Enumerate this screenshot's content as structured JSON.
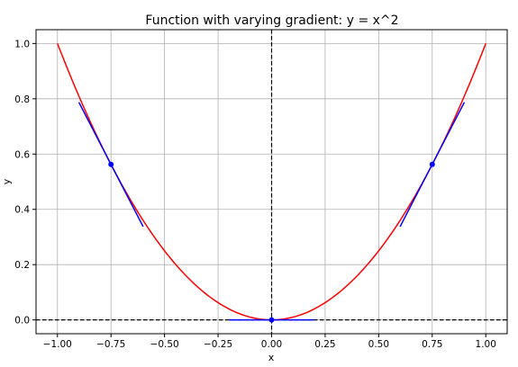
{
  "chart_data": {
    "type": "line",
    "title": "Function with varying gradient: y = x^2",
    "xlabel": "x",
    "ylabel": "y",
    "xlim": [
      -1.1,
      1.1
    ],
    "ylim": [
      -0.05,
      1.05
    ],
    "grid": true,
    "x_ticks": [
      -1.0,
      -0.75,
      -0.5,
      -0.25,
      0.0,
      0.25,
      0.5,
      0.75,
      1.0
    ],
    "x_tick_labels": [
      "−1.00",
      "−0.75",
      "−0.50",
      "−0.25",
      "0.00",
      "0.25",
      "0.50",
      "0.75",
      "1.00"
    ],
    "y_ticks": [
      0.0,
      0.2,
      0.4,
      0.6,
      0.8,
      1.0
    ],
    "y_tick_labels": [
      "0.0",
      "0.2",
      "0.4",
      "0.6",
      "0.8",
      "1.0"
    ],
    "curve": {
      "function": "x^2",
      "x_range": [
        -1.0,
        1.0
      ],
      "color": "#ff0000"
    },
    "tangent_points": [
      {
        "x": -0.75,
        "y": 0.5625,
        "slope": -1.5,
        "x_range": [
          -0.9,
          -0.6
        ]
      },
      {
        "x": 0.0,
        "y": 0.0,
        "slope": 0.0,
        "x_range": [
          -0.2,
          0.2
        ]
      },
      {
        "x": 0.75,
        "y": 0.5625,
        "slope": 1.5,
        "x_range": [
          0.6,
          0.9
        ]
      }
    ],
    "tangent_color": "#0000ff",
    "reference_lines": {
      "horizontal_y": 0.0,
      "vertical_x": 0.0,
      "style": "dashed",
      "color": "#000000"
    }
  }
}
